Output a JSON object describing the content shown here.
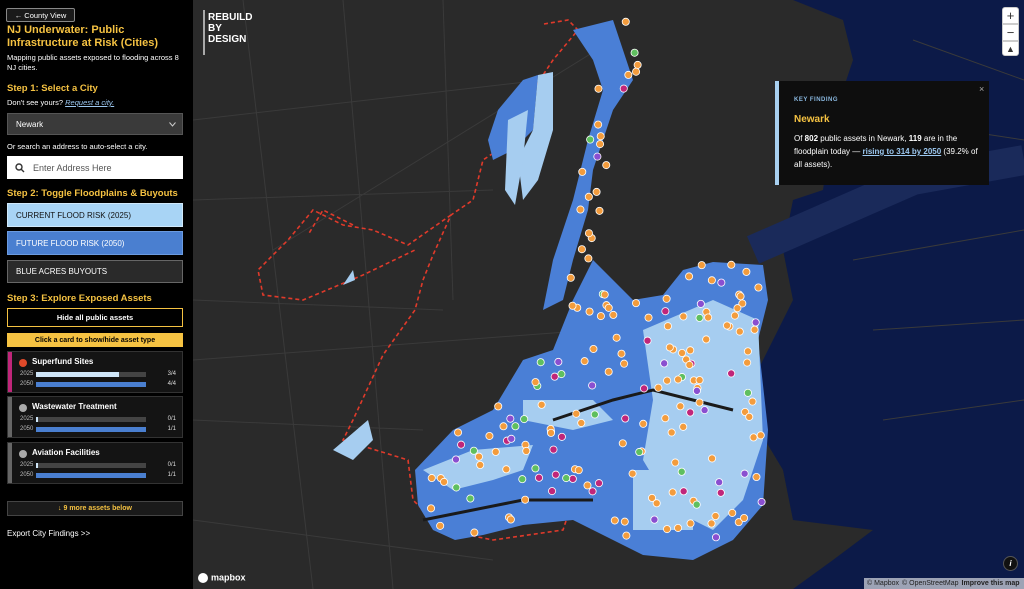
{
  "header": {
    "back_button": "← County View",
    "title": "NJ Underwater: Public Infrastructure at Risk (Cities)",
    "subtitle": "Mapping public assets exposed to flooding across 8 NJ cities."
  },
  "step1": {
    "heading": "Step 1: Select a City",
    "prompt": "Don't see yours?",
    "request_link": "Request a city.",
    "selected_city": "Newark",
    "search_hint": "Or search an address to auto-select a city.",
    "search_placeholder": "Enter Address Here"
  },
  "step2": {
    "heading": "Step 2: Toggle Floodplains & Buyouts",
    "toggles": [
      "CURRENT FLOOD RISK (2025)",
      "FUTURE FLOOD RISK (2050)",
      "BLUE ACRES BUYOUTS"
    ]
  },
  "step3": {
    "heading": "Step 3: Explore Exposed Assets",
    "hide_button": "Hide all public assets",
    "card_hint": "Click a card to show/hide asset type",
    "cards": [
      {
        "name": "Superfund Sites",
        "rows": [
          {
            "year": "2025",
            "exposed": 3,
            "total": 4,
            "label": "3/4"
          },
          {
            "year": "2050",
            "exposed": 4,
            "total": 4,
            "label": "4/4"
          }
        ]
      },
      {
        "name": "Wastewater Treatment",
        "rows": [
          {
            "year": "2025",
            "exposed": 0,
            "total": 1,
            "label": "0/1"
          },
          {
            "year": "2050",
            "exposed": 1,
            "total": 1,
            "label": "1/1"
          }
        ]
      },
      {
        "name": "Aviation Facilities",
        "rows": [
          {
            "year": "2025",
            "exposed": 0,
            "total": 1,
            "label": "0/1"
          },
          {
            "year": "2050",
            "exposed": 1,
            "total": 1,
            "label": "1/1"
          }
        ]
      }
    ],
    "more_button": "↓ 9 more assets below"
  },
  "export_link": "Export City Findings >>",
  "map": {
    "logo": [
      "REBUILD",
      "BY",
      "DESIGN"
    ],
    "key_finding": {
      "label": "KEY FINDING",
      "close": "×",
      "city": "Newark",
      "text": [
        "Of ",
        "802",
        " public assets in Newark, ",
        "119",
        " are in the floodplain today — ",
        "rising to 314 by 2050",
        " (39.2% of all assets)."
      ]
    },
    "zoom_in": "+",
    "zoom_out": "−",
    "info": "i",
    "mapbox_logo": "mapbox",
    "attribution": [
      "© Mapbox",
      "© OpenStreetMap",
      "Improve this map"
    ]
  }
}
